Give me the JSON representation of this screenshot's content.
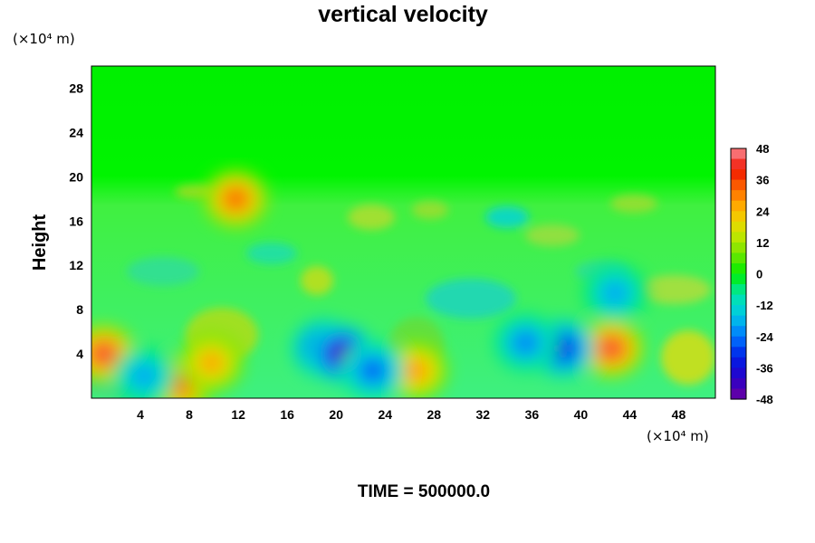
{
  "chart_data": {
    "type": "heatmap",
    "title": "vertical velocity",
    "ylabel": "Height",
    "xlabel": "",
    "x_unit": "(×10⁴ m)",
    "y_unit": "(×10⁴ m)",
    "xlim": [
      0,
      51
    ],
    "ylim": [
      0,
      30
    ],
    "x_ticks": [
      "4",
      "8",
      "12",
      "16",
      "20",
      "24",
      "28",
      "32",
      "36",
      "40",
      "44",
      "48"
    ],
    "y_ticks": [
      "4",
      "8",
      "12",
      "16",
      "20",
      "24",
      "28"
    ],
    "x_tick_values": [
      4,
      8,
      12,
      16,
      20,
      24,
      28,
      32,
      36,
      40,
      44,
      48
    ],
    "y_tick_values": [
      4,
      8,
      12,
      16,
      20,
      24,
      28
    ],
    "colorbar": {
      "min": -48,
      "max": 48,
      "step": 4,
      "labels": [
        "48",
        "36",
        "24",
        "12",
        "0",
        "-12",
        "-24",
        "-36",
        "-48"
      ],
      "label_values": [
        48,
        36,
        24,
        12,
        0,
        -12,
        -24,
        -36,
        -48
      ]
    },
    "features": [
      {
        "x": 1.0,
        "y": 4.0,
        "value": 44
      },
      {
        "x": 7.3,
        "y": 1.3,
        "value": 38
      },
      {
        "x": 9.8,
        "y": 3.2,
        "value": 30
      },
      {
        "x": 11.8,
        "y": 18.0,
        "value": 38
      },
      {
        "x": 26.5,
        "y": 2.5,
        "value": 32
      },
      {
        "x": 42.5,
        "y": 4.5,
        "value": 44
      },
      {
        "x": 19.0,
        "y": 4.5,
        "value": -38
      },
      {
        "x": 20.5,
        "y": 4.0,
        "value": -48
      },
      {
        "x": 23.0,
        "y": 2.5,
        "value": -30
      },
      {
        "x": 38.5,
        "y": 4.5,
        "value": -38
      },
      {
        "x": 35.5,
        "y": 5.0,
        "value": -26
      },
      {
        "x": 4.3,
        "y": 2.0,
        "value": -22
      },
      {
        "x": 42.8,
        "y": 9.5,
        "value": -22
      }
    ]
  },
  "footer": {
    "time_label": "TIME = 500000.0"
  }
}
